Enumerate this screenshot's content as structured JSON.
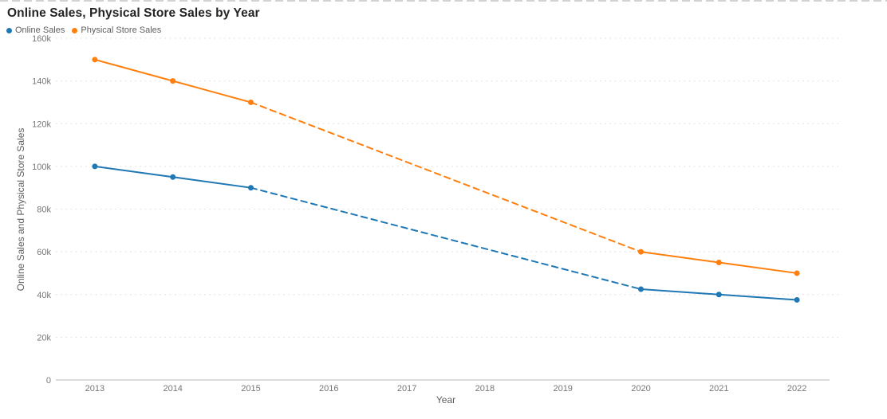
{
  "chart_data": {
    "type": "line",
    "title": "Online Sales, Physical Store Sales by Year",
    "xlabel": "Year",
    "ylabel": "Online Sales and Physical Store Sales",
    "categories": [
      "2013",
      "2014",
      "2015",
      "2016",
      "2017",
      "2018",
      "2019",
      "2020",
      "2021",
      "2022"
    ],
    "series": [
      {
        "name": "Online Sales",
        "color": "#1f77b4",
        "values": [
          100000,
          95000,
          90000,
          null,
          null,
          null,
          null,
          42500,
          40000,
          37500
        ]
      },
      {
        "name": "Physical Store Sales",
        "color": "#ff7f0e",
        "values": [
          150000,
          140000,
          130000,
          null,
          null,
          null,
          null,
          60000,
          55000,
          50000
        ]
      }
    ],
    "ylim": [
      0,
      160000
    ],
    "yticks": [
      {
        "value": 0,
        "label": "0"
      },
      {
        "value": 20000,
        "label": "20k"
      },
      {
        "value": 40000,
        "label": "40k"
      },
      {
        "value": 60000,
        "label": "60k"
      },
      {
        "value": 80000,
        "label": "80k"
      },
      {
        "value": 100000,
        "label": "100k"
      },
      {
        "value": 120000,
        "label": "120k"
      },
      {
        "value": 140000,
        "label": "140k"
      },
      {
        "value": 160000,
        "label": "160k"
      }
    ],
    "grid": "dotted-horizontal",
    "legend_position": "top-left",
    "missing_data_style": "dashed-interpolated-segment"
  }
}
